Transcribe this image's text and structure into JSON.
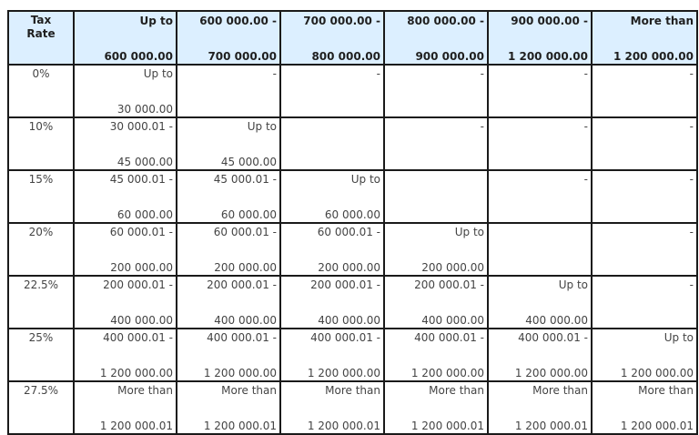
{
  "table": {
    "header": {
      "rate_label_line1": "Tax",
      "rate_label_line2": "Rate",
      "columns": [
        {
          "top": "Up to",
          "bottom": "600 000.00"
        },
        {
          "top": "600 000.00 -",
          "bottom": "700 000.00"
        },
        {
          "top": "700 000.00 -",
          "bottom": "800 000.00"
        },
        {
          "top": "800 000.00 -",
          "bottom": "900 000.00"
        },
        {
          "top": "900 000.00 -",
          "bottom": "1 200 000.00"
        },
        {
          "top": "More than",
          "bottom": "1 200 000.00"
        }
      ]
    },
    "rows": [
      {
        "rate": "0%",
        "cells": [
          {
            "top": "Up to",
            "bottom": "30 000.00"
          },
          {
            "top": "-",
            "bottom": ""
          },
          {
            "top": "-",
            "bottom": ""
          },
          {
            "top": "-",
            "bottom": ""
          },
          {
            "top": "-",
            "bottom": ""
          },
          {
            "top": "-",
            "bottom": ""
          }
        ]
      },
      {
        "rate": "10%",
        "cells": [
          {
            "top": "30 000.01 -",
            "bottom": "45 000.00"
          },
          {
            "top": "Up to",
            "bottom": "45 000.00"
          },
          {
            "top": "",
            "bottom": ""
          },
          {
            "top": "-",
            "bottom": ""
          },
          {
            "top": "-",
            "bottom": ""
          },
          {
            "top": "-",
            "bottom": ""
          }
        ]
      },
      {
        "rate": "15%",
        "cells": [
          {
            "top": "45 000.01 -",
            "bottom": "60 000.00"
          },
          {
            "top": "45 000.01 -",
            "bottom": "60 000.00"
          },
          {
            "top": "Up to",
            "bottom": "60 000.00"
          },
          {
            "top": "",
            "bottom": ""
          },
          {
            "top": "-",
            "bottom": ""
          },
          {
            "top": "-",
            "bottom": ""
          }
        ]
      },
      {
        "rate": "20%",
        "cells": [
          {
            "top": "60 000.01 -",
            "bottom": "200 000.00"
          },
          {
            "top": "60 000.01 -",
            "bottom": "200 000.00"
          },
          {
            "top": "60 000.01 -",
            "bottom": "200 000.00"
          },
          {
            "top": "Up to",
            "bottom": "200 000.00"
          },
          {
            "top": "",
            "bottom": ""
          },
          {
            "top": "-",
            "bottom": ""
          }
        ]
      },
      {
        "rate": "22.5%",
        "cells": [
          {
            "top": "200 000.01 -",
            "bottom": "400 000.00"
          },
          {
            "top": "200 000.01 -",
            "bottom": "400 000.00"
          },
          {
            "top": "200 000.01 -",
            "bottom": "400 000.00"
          },
          {
            "top": "200 000.01 -",
            "bottom": "400 000.00"
          },
          {
            "top": "Up to",
            "bottom": "400 000.00"
          },
          {
            "top": "-",
            "bottom": ""
          }
        ]
      },
      {
        "rate": "25%",
        "cells": [
          {
            "top": "400 000.01 -",
            "bottom": "1 200 000.00"
          },
          {
            "top": "400 000.01 -",
            "bottom": "1 200 000.00"
          },
          {
            "top": "400 000.01 -",
            "bottom": "1 200 000.00"
          },
          {
            "top": "400 000.01 -",
            "bottom": "1 200 000.00"
          },
          {
            "top": "400 000.01 -",
            "bottom": "1 200 000.00"
          },
          {
            "top": "Up to",
            "bottom": "1 200 000.00"
          }
        ]
      },
      {
        "rate": "27.5%",
        "cells": [
          {
            "top": "More than",
            "bottom": "1 200 000.01"
          },
          {
            "top": "More than",
            "bottom": "1 200 000.01"
          },
          {
            "top": "More than",
            "bottom": "1 200 000.01"
          },
          {
            "top": "More than",
            "bottom": "1 200 000.01"
          },
          {
            "top": "More than",
            "bottom": "1 200 000.01"
          },
          {
            "top": "More than",
            "bottom": "1 200 000.01"
          }
        ]
      }
    ]
  },
  "colors": {
    "header_bg": "#dcefff",
    "border": "#1a1a1a",
    "cell_text": "#444444",
    "header_text": "#1f1f1f"
  }
}
